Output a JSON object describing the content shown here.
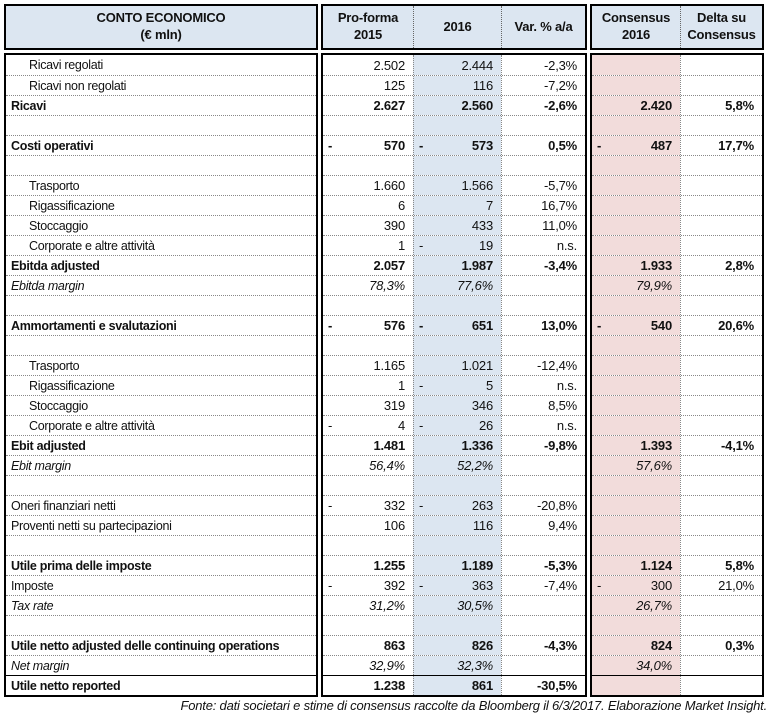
{
  "colors": {
    "header_bg": "#dce6f1",
    "col_2016_bg": "#dce6f1",
    "consensus_bg": "#f2dcdb",
    "border": "#000000",
    "dotted_line": "#888888"
  },
  "table": {
    "header": {
      "title_line1": "CONTO ECONOMICO",
      "title_line2": "(€ mln)",
      "proforma_line1": "Pro-forma",
      "proforma_line2": "2015",
      "year2016": "2016",
      "var_pct": "Var. % a/a",
      "consensus_line1": "Consensus",
      "consensus_line2": "2016",
      "delta_line1": "Delta su",
      "delta_line2": "Consensus"
    },
    "rows": [
      {
        "label": "Ricavi regolati",
        "style": "detail",
        "indent": true,
        "cells": [
          "2.502",
          "2.444",
          "-2,3%",
          "",
          ""
        ]
      },
      {
        "label": "Ricavi non regolati",
        "style": "detail",
        "indent": true,
        "cells": [
          "125",
          "116",
          "-7,2%",
          "",
          ""
        ]
      },
      {
        "label": "Ricavi",
        "style": "bold",
        "indent": false,
        "cells": [
          "2.627",
          "2.560",
          "-2,6%",
          "2.420",
          "5,8%"
        ]
      },
      {
        "label": "",
        "style": "blank",
        "indent": false,
        "cells": [
          "",
          "",
          "",
          "",
          ""
        ]
      },
      {
        "label": "Costi operativi",
        "style": "bold",
        "indent": false,
        "cells": [
          "-570",
          "-573",
          "0,5%",
          "-487",
          "17,7%"
        ]
      },
      {
        "label": "",
        "style": "blank",
        "indent": false,
        "cells": [
          "",
          "",
          "",
          "",
          ""
        ]
      },
      {
        "label": "Trasporto",
        "style": "detail",
        "indent": true,
        "cells": [
          "1.660",
          "1.566",
          "-5,7%",
          "",
          ""
        ]
      },
      {
        "label": "Rigassificazione",
        "style": "detail",
        "indent": true,
        "cells": [
          "6",
          "7",
          "16,7%",
          "",
          ""
        ]
      },
      {
        "label": "Stoccaggio",
        "style": "detail",
        "indent": true,
        "cells": [
          "390",
          "433",
          "11,0%",
          "",
          ""
        ]
      },
      {
        "label": "Corporate e altre attività",
        "style": "detail",
        "indent": true,
        "cells": [
          "1",
          "-19",
          "n.s.",
          "",
          ""
        ]
      },
      {
        "label": "Ebitda adjusted",
        "style": "bold",
        "indent": false,
        "cells": [
          "2.057",
          "1.987",
          "-3,4%",
          "1.933",
          "2,8%"
        ]
      },
      {
        "label": "Ebitda margin",
        "style": "margin",
        "indent": false,
        "cells": [
          "78,3%",
          "77,6%",
          "",
          "79,9%",
          ""
        ]
      },
      {
        "label": "",
        "style": "blank",
        "indent": false,
        "cells": [
          "",
          "",
          "",
          "",
          ""
        ]
      },
      {
        "label": "Ammortamenti e svalutazioni",
        "style": "bold",
        "indent": false,
        "cells": [
          "-576",
          "-651",
          "13,0%",
          "-540",
          "20,6%"
        ]
      },
      {
        "label": "",
        "style": "blank",
        "indent": false,
        "cells": [
          "",
          "",
          "",
          "",
          ""
        ]
      },
      {
        "label": "Trasporto",
        "style": "detail",
        "indent": true,
        "cells": [
          "1.165",
          "1.021",
          "-12,4%",
          "",
          ""
        ]
      },
      {
        "label": "Rigassificazione",
        "style": "detail",
        "indent": true,
        "cells": [
          "1",
          "-5",
          "n.s.",
          "",
          ""
        ]
      },
      {
        "label": "Stoccaggio",
        "style": "detail",
        "indent": true,
        "cells": [
          "319",
          "346",
          "8,5%",
          "",
          ""
        ]
      },
      {
        "label": "Corporate e altre attività",
        "style": "detail",
        "indent": true,
        "cells": [
          "-4",
          "-26",
          "n.s.",
          "",
          ""
        ]
      },
      {
        "label": "Ebit adjusted",
        "style": "bold",
        "indent": false,
        "cells": [
          "1.481",
          "1.336",
          "-9,8%",
          "1.393",
          "-4,1%"
        ]
      },
      {
        "label": "Ebit margin",
        "style": "margin",
        "indent": false,
        "cells": [
          "56,4%",
          "52,2%",
          "",
          "57,6%",
          ""
        ]
      },
      {
        "label": "",
        "style": "blank",
        "indent": false,
        "cells": [
          "",
          "",
          "",
          "",
          ""
        ]
      },
      {
        "label": "Oneri finanziari netti",
        "style": "detail",
        "indent": false,
        "cells": [
          "-332",
          "-263",
          "-20,8%",
          "",
          ""
        ]
      },
      {
        "label": "Proventi netti su partecipazioni",
        "style": "detail",
        "indent": false,
        "cells": [
          "106",
          "116",
          "9,4%",
          "",
          ""
        ]
      },
      {
        "label": "",
        "style": "blank",
        "indent": false,
        "cells": [
          "",
          "",
          "",
          "",
          ""
        ]
      },
      {
        "label": "Utile prima delle imposte",
        "style": "bold",
        "indent": false,
        "cells": [
          "1.255",
          "1.189",
          "-5,3%",
          "1.124",
          "5,8%"
        ]
      },
      {
        "label": "Imposte",
        "style": "detail",
        "indent": false,
        "cells": [
          "-392",
          "-363",
          "-7,4%",
          "-300",
          "21,0%"
        ]
      },
      {
        "label": "Tax rate",
        "style": "margin",
        "indent": false,
        "cells": [
          "31,2%",
          "30,5%",
          "",
          "26,7%",
          ""
        ]
      },
      {
        "label": "",
        "style": "blank",
        "indent": false,
        "cells": [
          "",
          "",
          "",
          "",
          ""
        ]
      },
      {
        "label": "Utile netto adjusted delle continuing operations",
        "style": "bold",
        "indent": false,
        "cells": [
          "863",
          "826",
          "-4,3%",
          "824",
          "0,3%"
        ]
      },
      {
        "label": "Net margin",
        "style": "margin",
        "indent": false,
        "cells": [
          "32,9%",
          "32,3%",
          "",
          "34,0%",
          ""
        ]
      },
      {
        "label": "Utile netto reported",
        "style": "bold",
        "indent": false,
        "top_solid": true,
        "cells": [
          "1.238",
          "861",
          "-30,5%",
          "",
          ""
        ]
      }
    ]
  },
  "footer": {
    "text": "Fonte: dati societari e stime di consensus raccolte da Bloomberg il 6/3/2017. Elaborazione Market Insight."
  }
}
